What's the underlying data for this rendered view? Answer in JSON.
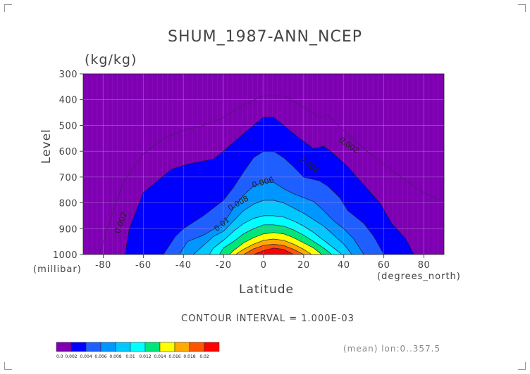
{
  "chart_data": {
    "type": "contour",
    "title": "SHUM_1987-ANN_NCEP",
    "units": "(kg/kg)",
    "ylabel": "Level",
    "yunits": "(millibar)",
    "xlabel": "Latitude",
    "xunits": "(degrees_north)",
    "xlim": [
      -90,
      90
    ],
    "ylim": [
      1000,
      300
    ],
    "x_ticks": [
      "-80",
      "-60",
      "-40",
      "-20",
      "0",
      "20",
      "40",
      "60",
      "80"
    ],
    "y_ticks": [
      "300",
      "400",
      "500",
      "600",
      "700",
      "800",
      "900",
      "1000"
    ],
    "contour_interval_text": "CONTOUR INTERVAL = 1.000E-03",
    "footer_note": "(mean) lon:0..357.5",
    "colorbar_labels": [
      "0.0",
      "0.002",
      "0.004",
      "0.006",
      "0.008",
      "0.01",
      "0.012",
      "0.014",
      "0.016",
      "0.018",
      "0.02"
    ],
    "colorbar_colors": [
      "#7f00b3",
      "#0000ff",
      "#1f5fff",
      "#0096ff",
      "#00c8ff",
      "#00ffff",
      "#00e678",
      "#ffff00",
      "#ffaa00",
      "#ff5500",
      "#ff0000"
    ],
    "contour_labels": [
      "0.002",
      "0.002",
      "0.004",
      "0.006",
      "0.008",
      "0.01"
    ],
    "levels": [
      {
        "value": 0.001,
        "fill": "#7f00b3",
        "line": false,
        "x": [
          -90,
          90,
          90,
          -90
        ],
        "p": [
          1000,
          1000,
          300,
          300
        ]
      },
      {
        "value": 0.002,
        "fill": "#0000ff",
        "line": true,
        "x": [
          -69,
          -67,
          -60,
          -46,
          -38,
          -25,
          -20,
          -15,
          -5,
          0,
          5,
          10,
          18,
          25,
          30,
          35,
          42,
          50,
          58,
          64,
          71,
          75
        ],
        "p": [
          1000,
          900,
          760,
          670,
          650,
          630,
          600,
          565,
          500,
          468,
          468,
          500,
          550,
          590,
          580,
          610,
          660,
          730,
          800,
          880,
          940,
          1000
        ]
      },
      {
        "value": 0.004,
        "fill": "#1f5fff",
        "line": true,
        "x": [
          -50,
          -44,
          -40,
          -30,
          -20,
          -15,
          -10,
          -5,
          0,
          5,
          10,
          15,
          20,
          28,
          32,
          38,
          42,
          50,
          55,
          60
        ],
        "p": [
          1000,
          930,
          900,
          850,
          790,
          740,
          680,
          625,
          600,
          600,
          625,
          660,
          700,
          715,
          735,
          780,
          830,
          880,
          930,
          1000
        ]
      },
      {
        "value": 0.006,
        "fill": "#0096ff",
        "line": true,
        "x": [
          -42,
          -38,
          -30,
          -20,
          -15,
          -10,
          -5,
          0,
          5,
          10,
          15,
          20,
          25,
          30,
          35,
          40,
          45,
          50
        ],
        "p": [
          1000,
          950,
          925,
          880,
          820,
          770,
          735,
          720,
          720,
          745,
          765,
          780,
          795,
          830,
          870,
          900,
          940,
          1000
        ]
      },
      {
        "value": 0.008,
        "fill": "#00c8ff",
        "line": true,
        "x": [
          -35,
          -30,
          -25,
          -20,
          -15,
          -10,
          -5,
          0,
          5,
          10,
          15,
          20,
          25,
          30,
          35,
          40,
          44
        ],
        "p": [
          1000,
          965,
          930,
          910,
          870,
          830,
          805,
          790,
          790,
          800,
          820,
          840,
          865,
          890,
          925,
          960,
          1000
        ]
      },
      {
        "value": 0.01,
        "fill": "#00ffff",
        "line": true,
        "x": [
          -27,
          -25,
          -20,
          -15,
          -10,
          -5,
          0,
          5,
          10,
          15,
          20,
          25,
          30,
          35,
          39
        ],
        "p": [
          1000,
          975,
          945,
          910,
          880,
          860,
          850,
          850,
          855,
          870,
          890,
          915,
          945,
          975,
          1000
        ]
      },
      {
        "value": 0.012,
        "fill": "#00e678",
        "line": true,
        "x": [
          -22,
          -20,
          -15,
          -10,
          -5,
          0,
          5,
          10,
          15,
          20,
          25,
          30,
          34
        ],
        "p": [
          1000,
          975,
          950,
          920,
          900,
          885,
          885,
          890,
          905,
          925,
          950,
          975,
          1000
        ]
      },
      {
        "value": 0.014,
        "fill": "#ffff00",
        "line": true,
        "x": [
          -17,
          -15,
          -10,
          -5,
          0,
          5,
          10,
          15,
          20,
          25,
          29
        ],
        "p": [
          1000,
          985,
          955,
          935,
          920,
          915,
          920,
          935,
          955,
          975,
          1000
        ]
      },
      {
        "value": 0.016,
        "fill": "#ffaa00",
        "line": true,
        "x": [
          -14,
          -10,
          -5,
          0,
          5,
          10,
          15,
          20,
          24
        ],
        "p": [
          1000,
          980,
          960,
          945,
          940,
          945,
          960,
          980,
          1000
        ]
      },
      {
        "value": 0.018,
        "fill": "#ff5500",
        "line": true,
        "x": [
          -10,
          -5,
          0,
          5,
          10,
          15,
          20
        ],
        "p": [
          1000,
          978,
          965,
          960,
          965,
          980,
          1000
        ]
      },
      {
        "value": 0.02,
        "fill": "#ff0000",
        "line": true,
        "x": [
          -5,
          0,
          5,
          10,
          15
        ],
        "p": [
          1000,
          985,
          975,
          980,
          1000
        ]
      }
    ],
    "thin_contour_0001": {
      "x": [
        -82,
        -78,
        -70,
        -60,
        -50,
        -40,
        -30,
        -20,
        -10,
        0,
        10,
        20,
        28,
        32,
        40,
        50,
        60,
        70,
        80,
        88
      ],
      "p": [
        1000,
        900,
        720,
        610,
        550,
        520,
        500,
        470,
        420,
        385,
        385,
        430,
        470,
        460,
        520,
        590,
        650,
        710,
        760,
        790
      ]
    }
  }
}
